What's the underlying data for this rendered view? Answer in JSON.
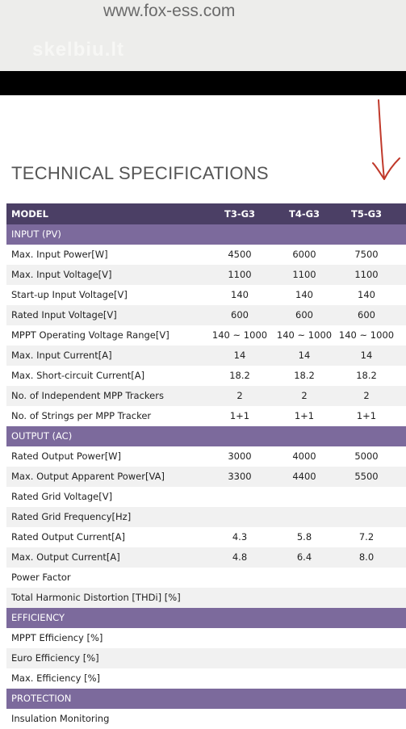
{
  "header": {
    "url": "www.fox-ess.com",
    "watermark": "skelbiu.lt"
  },
  "title": "TECHNICAL SPECIFICATIONS",
  "table": {
    "columns": [
      "MODEL",
      "T3-G3",
      "T4-G3",
      "T5-G3"
    ],
    "sections": [
      {
        "title": "INPUT (PV)",
        "rows": [
          {
            "label": "Max. Input Power[W]",
            "values": [
              "4500",
              "6000",
              "7500"
            ]
          },
          {
            "label": "Max. Input Voltage[V]",
            "values": [
              "1100",
              "1100",
              "1100"
            ]
          },
          {
            "label": "Start-up Input Voltage[V]",
            "values": [
              "140",
              "140",
              "140"
            ]
          },
          {
            "label": "Rated Input Voltage[V]",
            "values": [
              "600",
              "600",
              "600"
            ]
          },
          {
            "label": "MPPT Operating Voltage Range[V]",
            "values": [
              "140 ~ 1000",
              "140 ~ 1000",
              "140 ~ 1000"
            ]
          },
          {
            "label": "Max. Input Current[A]",
            "values": [
              "14",
              "14",
              "14"
            ]
          },
          {
            "label": "Max. Short-circuit Current[A]",
            "values": [
              "18.2",
              "18.2",
              "18.2"
            ]
          },
          {
            "label": "No. of Independent MPP Trackers",
            "values": [
              "2",
              "2",
              "2"
            ]
          },
          {
            "label": "No. of Strings per MPP Tracker",
            "values": [
              "1+1",
              "1+1",
              "1+1"
            ]
          }
        ]
      },
      {
        "title": "OUTPUT (AC)",
        "rows": [
          {
            "label": "Rated Output Power[W]",
            "values": [
              "3000",
              "4000",
              "5000"
            ]
          },
          {
            "label": "Max. Output Apparent Power[VA]",
            "values": [
              "3300",
              "4400",
              "5500"
            ]
          },
          {
            "label": "Rated Grid Voltage[V]"
          },
          {
            "label": "Rated Grid Frequency[Hz]"
          },
          {
            "label": "Rated Output Current[A]",
            "values": [
              "4.3",
              "5.8",
              "7.2"
            ]
          },
          {
            "label": "Max. Output Current[A]",
            "values": [
              "4.8",
              "6.4",
              "8.0"
            ]
          },
          {
            "label": "Power Factor"
          },
          {
            "label": "Total Harmonic Distortion [THDi] [%]"
          }
        ]
      },
      {
        "title": "EFFICIENCY",
        "rows": [
          {
            "label": "MPPT Efficiency [%]"
          },
          {
            "label": "Euro Efficiency [%]"
          },
          {
            "label": "Max. Efficiency [%]"
          }
        ]
      },
      {
        "title": "PROTECTION",
        "rows": [
          {
            "label": "Insulation Monitoring"
          }
        ]
      }
    ]
  }
}
